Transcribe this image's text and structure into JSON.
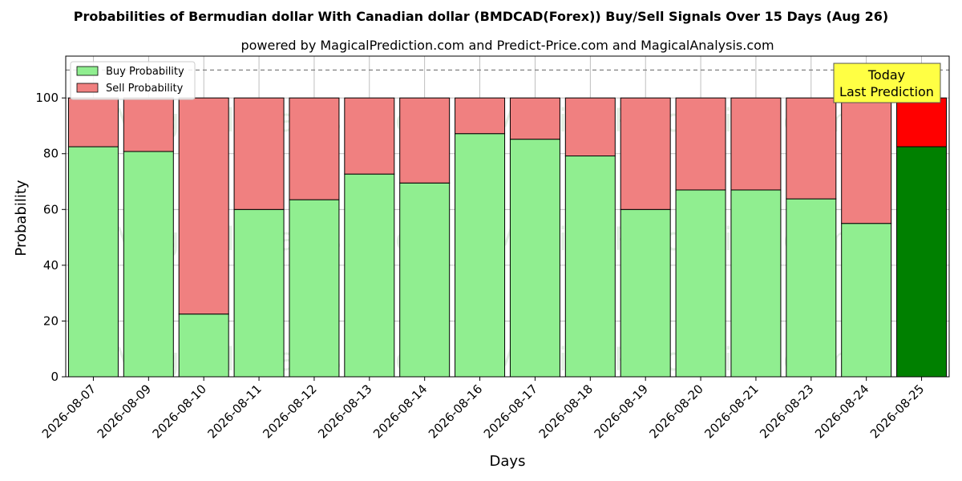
{
  "chart_data": {
    "type": "bar",
    "stacked": true,
    "title": "Probabilities of Bermudian dollar With Canadian dollar (BMDCAD(Forex)) Buy/Sell Signals Over 15 Days (Aug 26)",
    "subtitle": "powered by MagicalPrediction.com and Predict-Price.com and MagicalAnalysis.com",
    "xlabel": "Days",
    "ylabel": "Probability",
    "ylim": [
      0,
      115
    ],
    "yticks": [
      0,
      20,
      40,
      60,
      80,
      100
    ],
    "reference_line": 110,
    "grid": true,
    "legend_position": "top-left",
    "categories": [
      "2026-08-07",
      "2026-08-09",
      "2026-08-10",
      "2026-08-11",
      "2026-08-12",
      "2026-08-13",
      "2026-08-14",
      "2026-08-16",
      "2026-08-17",
      "2026-08-18",
      "2026-08-19",
      "2026-08-20",
      "2026-08-21",
      "2026-08-23",
      "2026-08-24",
      "2026-08-25"
    ],
    "series": [
      {
        "name": "Buy Probability",
        "color": "#90ee90",
        "highlight_color": "#008000",
        "values": [
          82.5,
          80.8,
          22.5,
          60.0,
          63.5,
          72.7,
          69.5,
          87.2,
          85.2,
          79.2,
          60.0,
          67.0,
          67.0,
          63.8,
          55.0,
          82.5
        ]
      },
      {
        "name": "Sell Probability",
        "color": "#f08080",
        "highlight_color": "#ff0000",
        "values": [
          17.5,
          19.2,
          77.5,
          40.0,
          36.5,
          27.3,
          30.5,
          12.8,
          14.8,
          20.8,
          40.0,
          33.0,
          33.0,
          36.2,
          45.0,
          17.5
        ]
      }
    ],
    "highlight_index": 15,
    "annotation": {
      "lines": [
        "Today",
        "Last Prediction"
      ],
      "background": "#ffff44"
    },
    "watermarks": [
      "MagicalAnalysis.com",
      "MagicalPrediction.com"
    ]
  }
}
